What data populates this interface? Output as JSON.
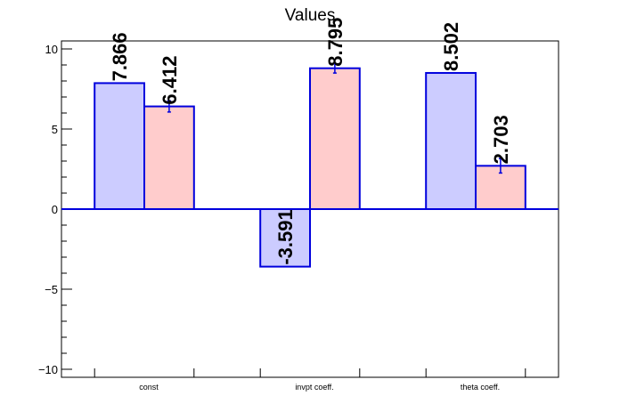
{
  "chart_data": {
    "type": "bar",
    "title": "Values",
    "xlabel": "",
    "ylabel": "",
    "categories": [
      "const",
      "invpt coeff.",
      "theta coeff."
    ],
    "ylim": [
      -10.5,
      10.5
    ],
    "yticks": [
      -10,
      -5,
      0,
      5,
      10
    ],
    "grid": false,
    "series": [
      {
        "values": [
          7.866,
          -3.591,
          8.502
        ],
        "labels": [
          "7.866",
          "-3.591",
          "8.502"
        ],
        "errors": [
          0,
          0,
          0
        ],
        "fill": "#ccccff",
        "stroke": "#0000dd"
      },
      {
        "values": [
          6.412,
          8.795,
          2.703
        ],
        "labels": [
          "6.412",
          "8.795",
          "2.703"
        ],
        "errors": [
          0.35,
          0.3,
          0.45
        ],
        "fill": "#ffcccc",
        "stroke": "#0000dd"
      }
    ]
  }
}
